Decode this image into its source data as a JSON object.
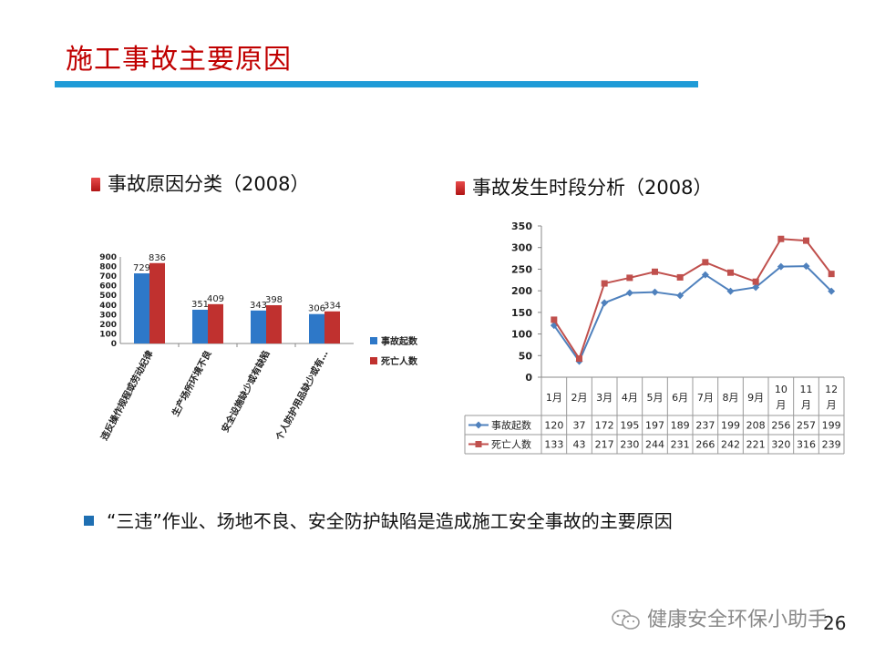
{
  "slide": {
    "title": "施工事故主要原因",
    "page_number": "26",
    "bottom_text": "“三违”作业、场地不良、安全防护缺陷是造成施工安全事故的主要原因",
    "watermark": "健康安全环保小助手",
    "accent_color": "#1f9bd7",
    "title_color": "#c00000"
  },
  "left_heading": "事故原因分类（2008）",
  "right_heading": "事故发生时段分析（2008）",
  "chart_data": [
    {
      "type": "bar",
      "categories": [
        "违反操作规程或劳动纪律",
        "生产场所环境不良",
        "安全设施缺少或有缺陷",
        "个人防护用品缺少或有…"
      ],
      "series": [
        {
          "name": "事故起数",
          "values": [
            729,
            351,
            343,
            306
          ],
          "color": "#2e78c8"
        },
        {
          "name": "死亡人数",
          "values": [
            836,
            409,
            398,
            334
          ],
          "color": "#c0312f"
        }
      ],
      "ylim": [
        0,
        900
      ],
      "yticks": [
        0,
        100,
        200,
        300,
        400,
        500,
        600,
        700,
        800,
        900
      ],
      "legend": "right"
    },
    {
      "type": "line",
      "categories": [
        "1月",
        "2月",
        "3月",
        "4月",
        "5月",
        "6月",
        "7月",
        "8月",
        "9月",
        "10月",
        "11月",
        "12月"
      ],
      "series": [
        {
          "name": "事故起数",
          "values": [
            120,
            37,
            172,
            195,
            197,
            189,
            237,
            199,
            208,
            256,
            257,
            199
          ],
          "color": "#4f81bd"
        },
        {
          "name": "死亡人数",
          "values": [
            133,
            43,
            217,
            230,
            244,
            231,
            266,
            242,
            221,
            320,
            316,
            239
          ],
          "color": "#c0504d"
        }
      ],
      "ylim": [
        0,
        350
      ],
      "yticks": [
        0,
        50,
        100,
        150,
        200,
        250,
        300,
        350
      ],
      "grid": false,
      "legend": "data-table"
    }
  ]
}
